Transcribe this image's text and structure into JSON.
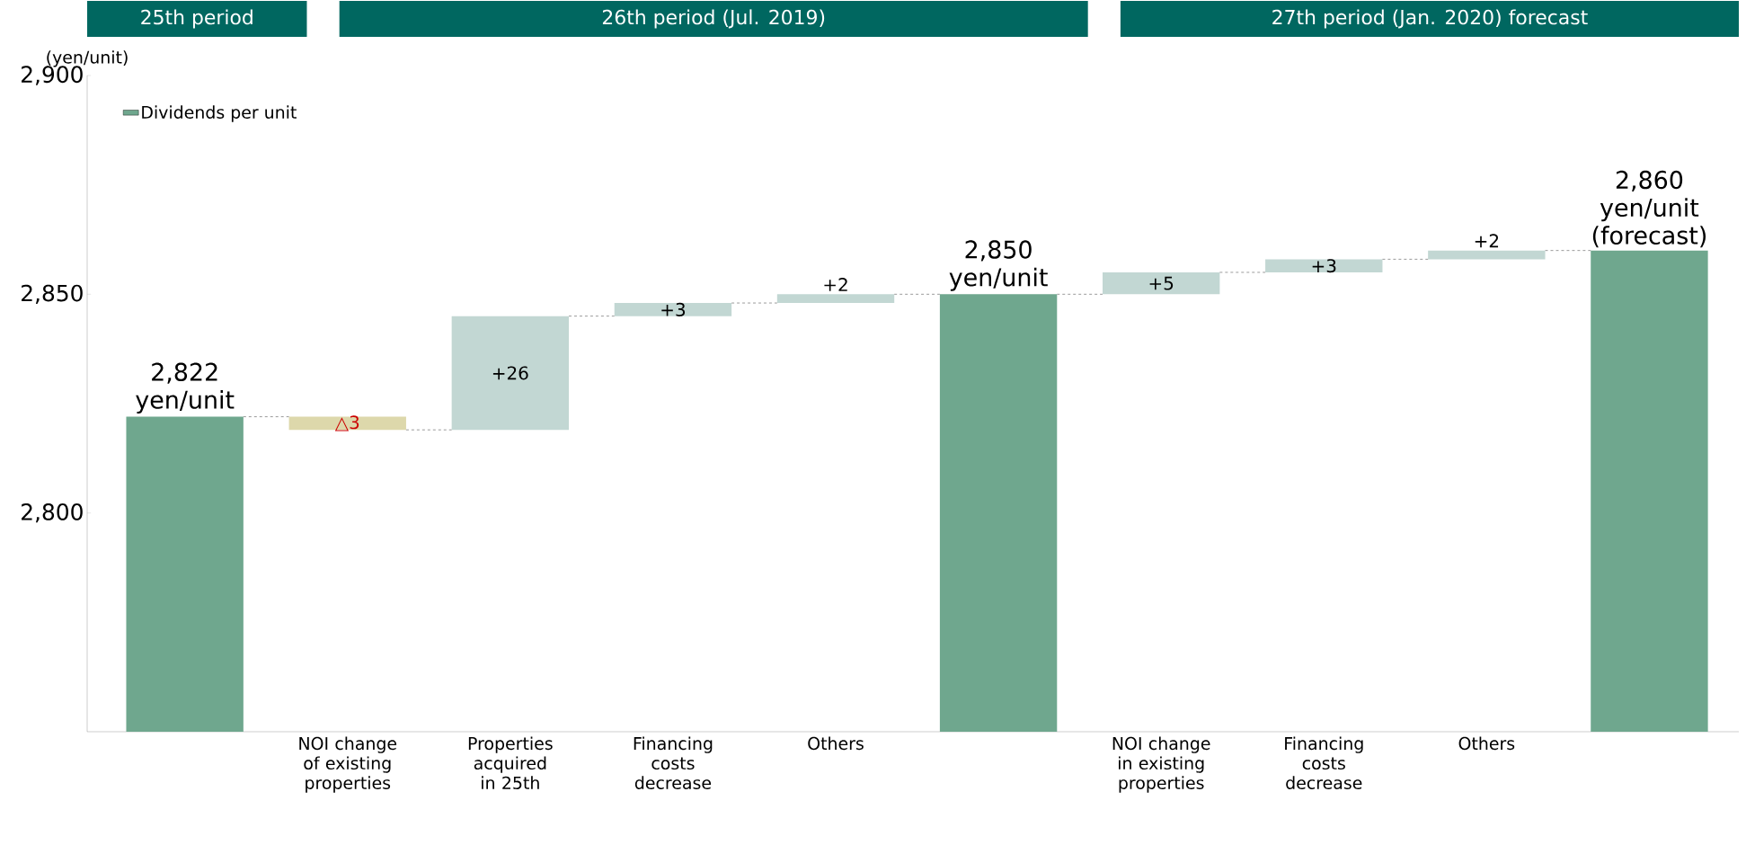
{
  "chart_data": {
    "type": "bar",
    "ylabel": "(yen/unit)",
    "categories": [
      null,
      "NOI change of existing properties",
      "Properties acquired in 25th",
      "Financing costs decrease",
      "Others",
      null,
      "NOI change in existing properties",
      "Financing costs decrease",
      "Others",
      null
    ],
    "series": [
      {
        "name": "Dividends per unit",
        "color": "#6fa78e",
        "values": [
          2822,
          -3,
          26,
          3,
          2,
          2850,
          5,
          3,
          2,
          2860
        ],
        "base": [
          null,
          2822,
          2819,
          2845,
          2848,
          null,
          2850,
          2855,
          2858,
          null
        ],
        "colors": [
          "#6fa78e",
          "#ddd8ab",
          "#c2d7d3",
          "#c2d7d3",
          "#c2d7d3",
          "#6fa78e",
          "#c2d7d3",
          "#c2d7d3",
          "#c2d7d3",
          "#6fa78e"
        ],
        "value_labels": [
          "2,822 yen/unit",
          "△3",
          "+26",
          "+3",
          "+2",
          "2,850 yen/unit",
          "+5",
          "+3",
          "+2",
          "2,860 yen/unit (forecast)"
        ]
      }
    ],
    "ylim": [
      2750,
      2900
    ],
    "yticks": [
      {
        "value": 2800,
        "label": "2,800"
      },
      {
        "value": 2850,
        "label": "2,850"
      },
      {
        "value": 2900,
        "label": "2,900"
      }
    ],
    "legend": "top left",
    "annotations": [
      "25th period",
      "26th period (Jul. 2019)",
      "27th period (Jan. 2020) forecast"
    ]
  }
}
